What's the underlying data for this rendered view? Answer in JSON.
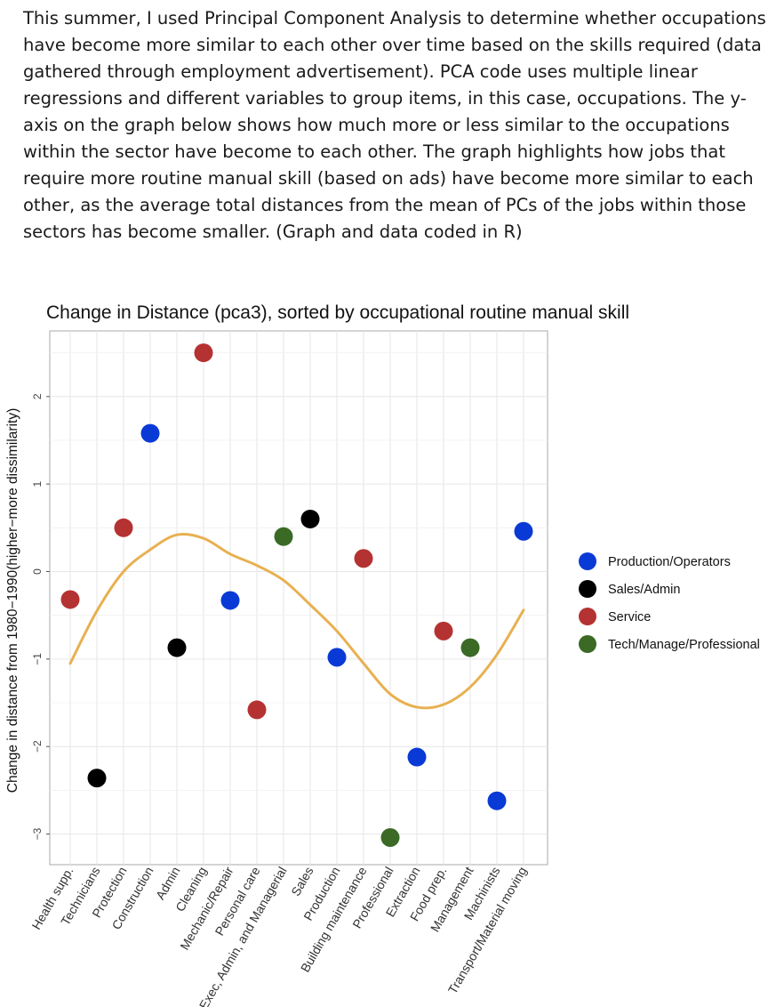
{
  "intro_text": "This summer, I used Principal Component Analysis to determine whether occupations have become more similar to each other over time based on the skills required (data gathered through employment advertisement). PCA code uses multiple linear regressions and different variables to group items, in this case, occupations. The y-axis on the graph below shows how much more or less similar to the occupations within the sector have become to each other. The graph highlights how jobs that require more routine manual skill (based on ads) have become more similar to each other, as the average total distances from the mean of PCs of the jobs within those sectors has become smaller. (Graph and data coded in R)",
  "chart_data": {
    "type": "scatter",
    "title": "Change in Distance (pca3), sorted by occupational routine manual skill",
    "xlabel": "",
    "ylabel": "Change in distance from 1980−1990(higher−more dissimilarity)",
    "ylim": [
      -3.35,
      2.75
    ],
    "yticks": [
      -3,
      -2,
      -1,
      0,
      1,
      2
    ],
    "grid": true,
    "legend_position": "right",
    "categories": [
      "Health supp.",
      "Technicians",
      "Protection",
      "Construction",
      "Admin",
      "Cleaning",
      "Mechanic/Repair",
      "Personal care",
      "Exec, Admin, and Managerial",
      "Sales",
      "Production",
      "Building maintenance",
      "Professional",
      "Extraction",
      "Food prep.",
      "Management",
      "Machinists",
      "Transport/Material moving"
    ],
    "groups": [
      {
        "name": "Production/Operators",
        "color": "#0a3ad6"
      },
      {
        "name": "Sales/Admin",
        "color": "#000000"
      },
      {
        "name": "Service",
        "color": "#b53232"
      },
      {
        "name": "Tech/Manage/Professional",
        "color": "#3a6a25"
      }
    ],
    "points": [
      {
        "x": "Health supp.",
        "y": -0.32,
        "group": "Service"
      },
      {
        "x": "Technicians",
        "y": -2.36,
        "group": "Sales/Admin"
      },
      {
        "x": "Protection",
        "y": 0.5,
        "group": "Service"
      },
      {
        "x": "Construction",
        "y": 1.58,
        "group": "Production/Operators"
      },
      {
        "x": "Admin",
        "y": -0.87,
        "group": "Sales/Admin"
      },
      {
        "x": "Cleaning",
        "y": 2.5,
        "group": "Service"
      },
      {
        "x": "Mechanic/Repair",
        "y": -0.33,
        "group": "Production/Operators"
      },
      {
        "x": "Personal care",
        "y": -1.58,
        "group": "Service"
      },
      {
        "x": "Exec, Admin, and Managerial",
        "y": 0.4,
        "group": "Tech/Manage/Professional"
      },
      {
        "x": "Sales",
        "y": 0.6,
        "group": "Sales/Admin"
      },
      {
        "x": "Production",
        "y": -0.98,
        "group": "Production/Operators"
      },
      {
        "x": "Building maintenance",
        "y": 0.15,
        "group": "Service"
      },
      {
        "x": "Professional",
        "y": -3.04,
        "group": "Tech/Manage/Professional"
      },
      {
        "x": "Extraction",
        "y": -2.12,
        "group": "Production/Operators"
      },
      {
        "x": "Food prep.",
        "y": -0.68,
        "group": "Service"
      },
      {
        "x": "Management",
        "y": -0.87,
        "group": "Tech/Manage/Professional"
      },
      {
        "x": "Machinists",
        "y": -2.62,
        "group": "Production/Operators"
      },
      {
        "x": "Transport/Material moving",
        "y": 0.46,
        "group": "Production/Operators"
      }
    ],
    "trend": {
      "color": "#e8b050",
      "values": [
        -1.05,
        -0.45,
        0.0,
        0.25,
        0.42,
        0.38,
        0.2,
        0.07,
        -0.1,
        -0.38,
        -0.68,
        -1.05,
        -1.4,
        -1.55,
        -1.52,
        -1.32,
        -0.95,
        -0.44
      ]
    }
  }
}
